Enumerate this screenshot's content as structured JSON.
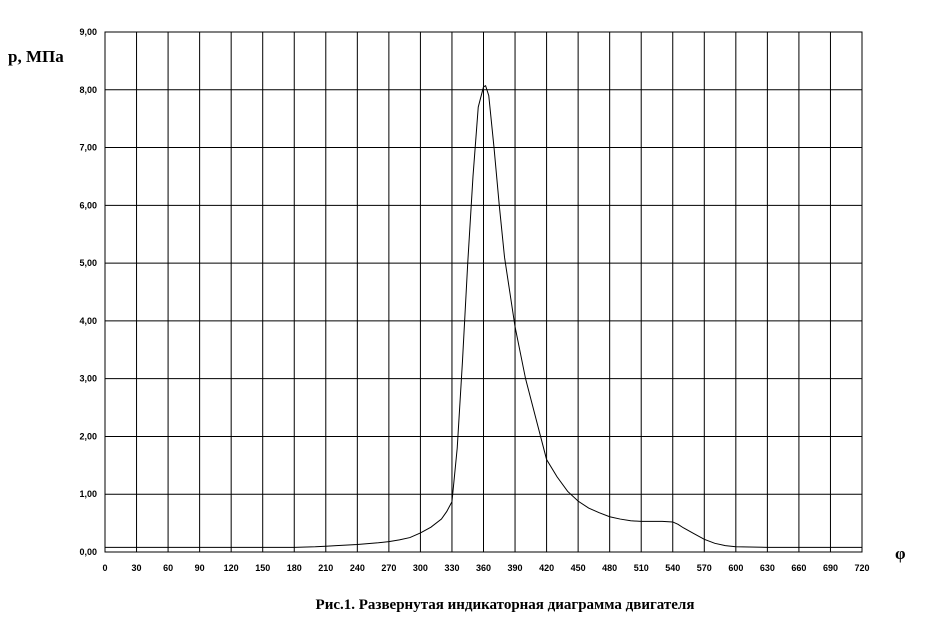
{
  "chart_data": {
    "type": "line",
    "title": "Рис.1. Развернутая индикаторная диаграмма двигателя",
    "xlabel": "φ",
    "ylabel": "р, МПа",
    "xlim": [
      0,
      720
    ],
    "ylim": [
      0,
      9
    ],
    "xticks": [
      0,
      30,
      60,
      90,
      120,
      150,
      180,
      210,
      240,
      270,
      300,
      330,
      360,
      390,
      420,
      450,
      480,
      510,
      540,
      570,
      600,
      630,
      660,
      690,
      720
    ],
    "xtick_labels": [
      "0",
      "30",
      "60",
      "90",
      "120",
      "150",
      "180",
      "210",
      "240",
      "270",
      "300",
      "330",
      "360",
      "390",
      "420",
      "450",
      "480",
      "510",
      "540",
      "570",
      "600",
      "630",
      "660",
      "690",
      "720"
    ],
    "yticks": [
      0,
      1,
      2,
      3,
      4,
      5,
      6,
      7,
      8,
      9
    ],
    "ytick_labels": [
      "0,00",
      "1,00",
      "2,00",
      "3,00",
      "4,00",
      "5,00",
      "6,00",
      "7,00",
      "8,00",
      "9,00"
    ],
    "grid": true,
    "series": [
      {
        "color": "#000000",
        "x": [
          0,
          30,
          60,
          90,
          120,
          150,
          180,
          200,
          210,
          220,
          240,
          260,
          270,
          280,
          290,
          300,
          310,
          320,
          325,
          330,
          335,
          340,
          345,
          350,
          355,
          360,
          362,
          365,
          370,
          375,
          380,
          390,
          400,
          410,
          420,
          430,
          440,
          450,
          460,
          470,
          480,
          490,
          500,
          510,
          520,
          530,
          540,
          545,
          550,
          560,
          570,
          580,
          590,
          600,
          630,
          660,
          690,
          720
        ],
        "y": [
          0.08,
          0.08,
          0.08,
          0.08,
          0.08,
          0.08,
          0.08,
          0.09,
          0.1,
          0.11,
          0.13,
          0.16,
          0.18,
          0.21,
          0.25,
          0.33,
          0.43,
          0.57,
          0.7,
          0.87,
          1.8,
          3.3,
          5.0,
          6.5,
          7.7,
          8.05,
          8.07,
          7.9,
          7.0,
          6.0,
          5.1,
          3.9,
          3.0,
          2.3,
          1.6,
          1.3,
          1.05,
          0.88,
          0.76,
          0.68,
          0.61,
          0.57,
          0.54,
          0.53,
          0.53,
          0.53,
          0.52,
          0.48,
          0.42,
          0.32,
          0.22,
          0.15,
          0.11,
          0.09,
          0.08,
          0.08,
          0.08,
          0.08
        ]
      }
    ]
  }
}
